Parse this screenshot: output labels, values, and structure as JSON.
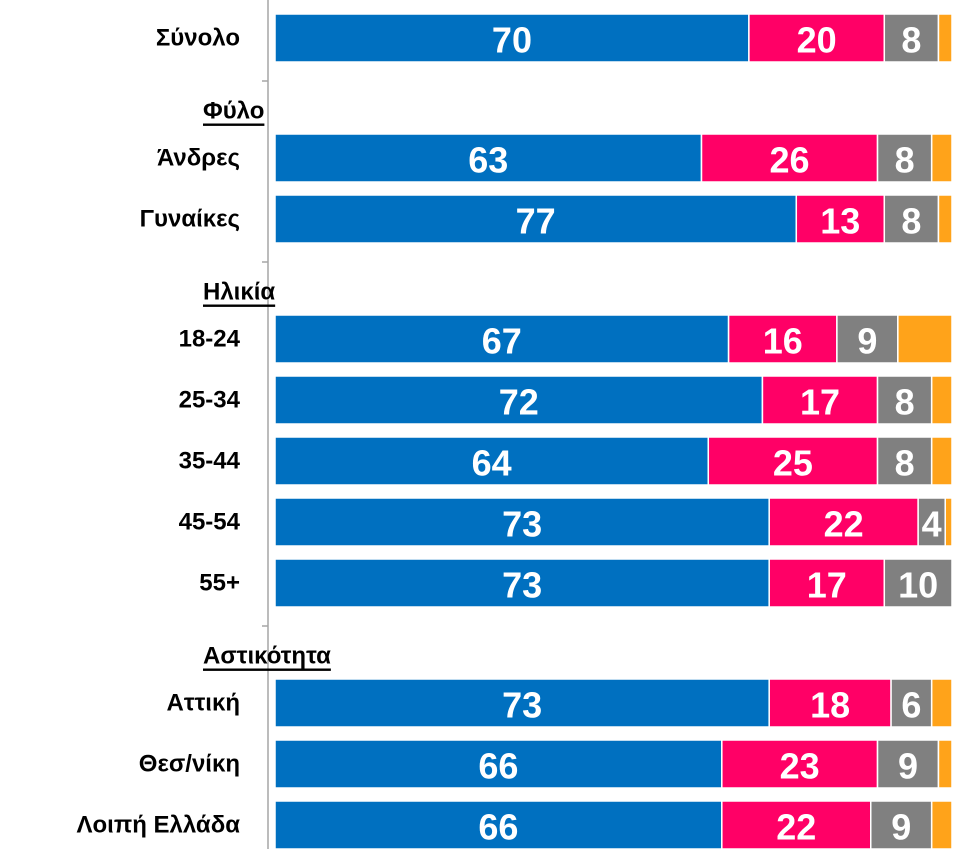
{
  "chart_data": {
    "type": "stacked-bar-horizontal",
    "xlim": [
      0,
      100
    ],
    "groups": [
      {
        "categories": [
          "Σύνολο"
        ]
      },
      {
        "label": "Φύλο",
        "categories": [
          "Άνδρες",
          "Γυναίκες"
        ]
      },
      {
        "label": "Ηλικία",
        "categories": [
          "18-24",
          "25-34",
          "35-44",
          "45-54",
          "55+"
        ]
      },
      {
        "label": "Αστικότητα",
        "categories": [
          "Αττική",
          "Θεσ/νίκη",
          "Λοιπή Ελλάδα"
        ]
      }
    ],
    "series": [
      {
        "color": "#0070c0",
        "values": [
          70,
          63,
          77,
          67,
          72,
          64,
          73,
          73,
          73,
          66,
          66
        ]
      },
      {
        "color": "#ff0066",
        "values": [
          20,
          26,
          13,
          16,
          17,
          25,
          22,
          17,
          18,
          23,
          22
        ]
      },
      {
        "color": "#808080",
        "values": [
          8,
          8,
          8,
          9,
          8,
          8,
          4,
          10,
          6,
          9,
          9
        ]
      },
      {
        "color": "#ffa31a",
        "show_labels": false,
        "values": [
          2,
          3,
          2,
          8,
          3,
          3,
          1,
          0,
          3,
          2,
          3
        ]
      }
    ]
  }
}
